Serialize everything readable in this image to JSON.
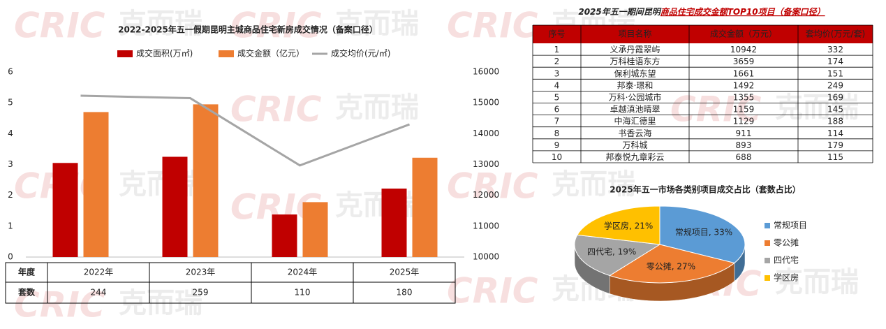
{
  "chart_data": [
    {
      "type": "bar",
      "title": "2022-2025年五一假期昆明主城商品住宅新房成交情况（备案口径）",
      "categories": [
        "2022年",
        "2023年",
        "2024年",
        "2025年"
      ],
      "series": [
        {
          "name": "成交面积(万㎡)",
          "color": "#c00000",
          "values": [
            3.05,
            3.25,
            1.38,
            2.22
          ]
        },
        {
          "name": "成交金额（亿元）",
          "color": "#ed7d31",
          "values": [
            4.7,
            4.95,
            1.78,
            3.22
          ]
        },
        {
          "name": "成交均价(元/㎡)",
          "color": "#a5a5a5",
          "type": "line",
          "axis": "y2",
          "values": [
            15230,
            15150,
            12970,
            14300
          ]
        }
      ],
      "ylim": [
        0,
        6
      ],
      "yticks": [
        0,
        1,
        2,
        3,
        4,
        5,
        6
      ],
      "y2lim": [
        10000,
        16000
      ],
      "y2ticks": [
        10000,
        11000,
        12000,
        13000,
        14000,
        15000,
        16000
      ],
      "legend": "top",
      "data_table": {
        "header": "年度",
        "row_label": "套数",
        "values": [
          244,
          259,
          110,
          180
        ]
      }
    },
    {
      "type": "pie",
      "title": "2025年五一市场各类别项目成交占比（套数占比）",
      "categories": [
        "常规项目",
        "零公摊",
        "四代宅",
        "学区房"
      ],
      "values": [
        33,
        27,
        19,
        21
      ],
      "value_labels": [
        "常规项目, 33%",
        "零公摊, 27%",
        "四代宅, 19%",
        "学区房, 21%"
      ],
      "colors": [
        "#5b9bd5",
        "#ed7d31",
        "#a5a5a5",
        "#ffc000"
      ],
      "legend": "right"
    }
  ],
  "table": {
    "title": [
      "2025年五一期间昆明",
      "商品住宅成交金额TOP10项目（备案口径）"
    ],
    "header": [
      "序号",
      "项目名称",
      "成交金额（万元）",
      "套均价(万元/套)"
    ],
    "rows": [
      [
        1,
        "义承丹霞翠屿",
        10942,
        332
      ],
      [
        2,
        "万科桂语东方",
        3659,
        174
      ],
      [
        3,
        "保利城东望",
        1661,
        151
      ],
      [
        4,
        "邦泰·璟和",
        1492,
        249
      ],
      [
        5,
        "万科·公园城市",
        1355,
        169
      ],
      [
        6,
        "卓越滇池晴翠",
        1159,
        145
      ],
      [
        7,
        "中海汇德里",
        1129,
        188
      ],
      [
        8,
        "书香云海",
        911,
        114
      ],
      [
        9,
        "万科城",
        893,
        179
      ],
      [
        10,
        "邦泰悦九章彩云",
        688,
        115
      ]
    ]
  },
  "watermark": [
    "CRIC",
    "克而瑞"
  ]
}
